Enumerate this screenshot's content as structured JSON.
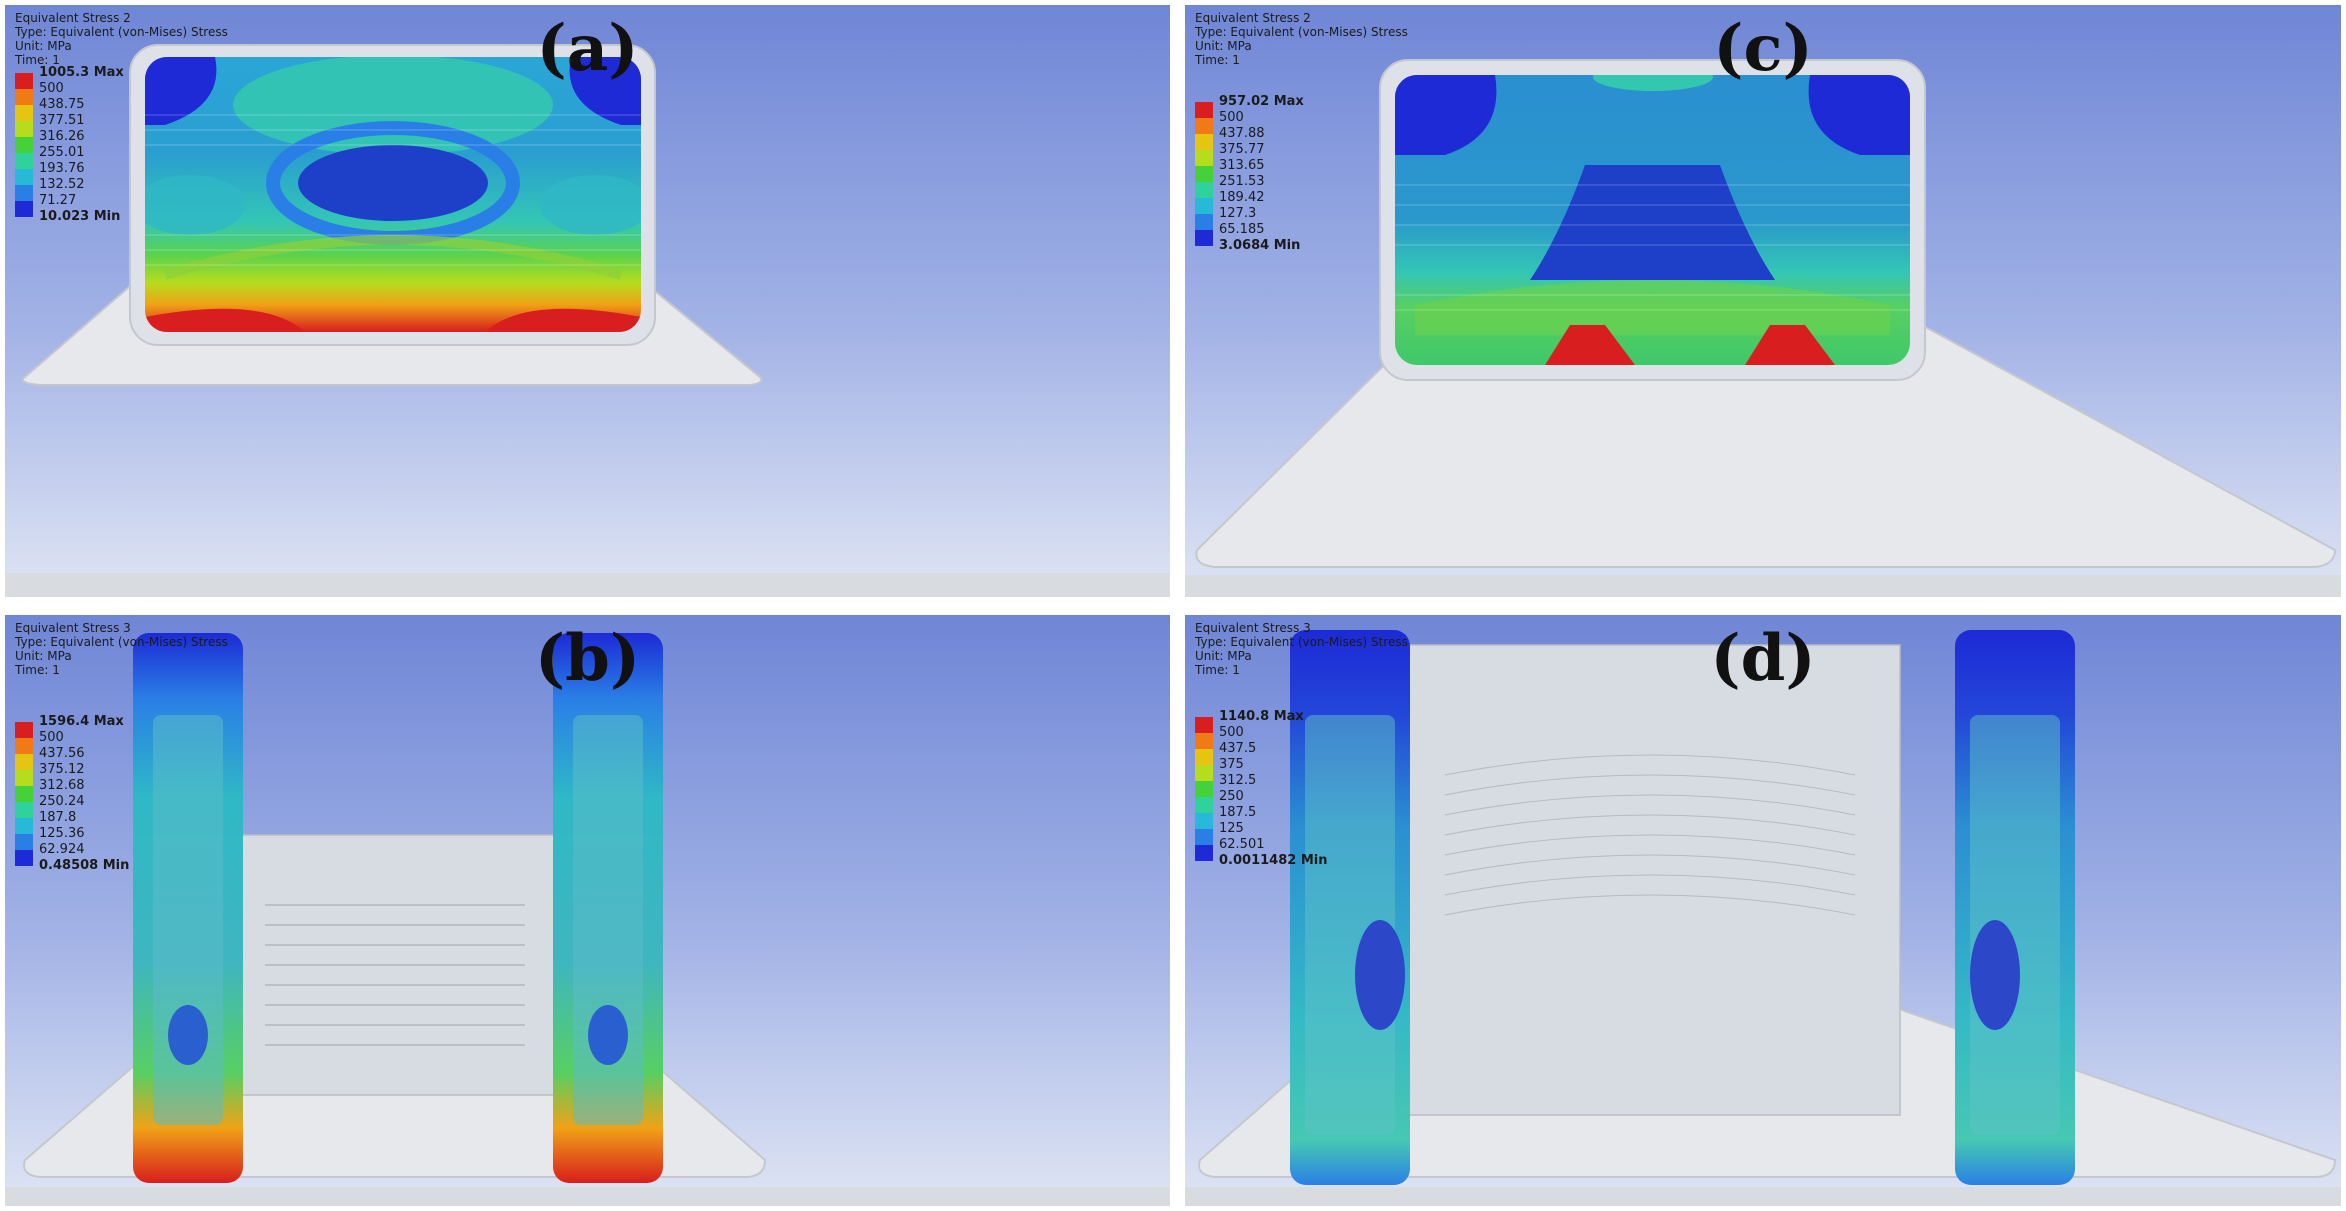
{
  "legend_colors": [
    "#d81e1e",
    "#f07a16",
    "#e6c412",
    "#b6dc1e",
    "#44d13a",
    "#2fd29b",
    "#29b9d8",
    "#2a7fe6",
    "#1d2ad6"
  ],
  "panels": {
    "a": {
      "letter": "(a)",
      "title": "Equivalent Stress 2",
      "type": "Type: Equivalent (von-Mises) Stress",
      "unit": "Unit: MPa",
      "time": "Time: 1",
      "legend": [
        "1005.3 Max",
        "500",
        "438.75",
        "377.51",
        "316.26",
        "255.01",
        "193.76",
        "132.52",
        "71.27",
        "10.023 Min"
      ]
    },
    "c": {
      "letter": "(c)",
      "title": "Equivalent Stress 2",
      "type": "Type: Equivalent (von-Mises) Stress",
      "unit": "Unit: MPa",
      "time": "Time: 1",
      "legend": [
        "957.02 Max",
        "500",
        "437.88",
        "375.77",
        "313.65",
        "251.53",
        "189.42",
        "127.3",
        "65.185",
        "3.0684 Min"
      ]
    },
    "b": {
      "letter": "(b)",
      "title": "Equivalent Stress 3",
      "type": "Type: Equivalent (von-Mises) Stress",
      "unit": "Unit: MPa",
      "time": "Time: 1",
      "legend": [
        "1596.4 Max",
        "500",
        "437.56",
        "375.12",
        "312.68",
        "250.24",
        "187.8",
        "125.36",
        "62.924",
        "0.48508 Min"
      ]
    },
    "d": {
      "letter": "(d)",
      "title": "Equivalent Stress 3",
      "type": "Type: Equivalent (von-Mises) Stress",
      "unit": "Unit: MPa",
      "time": "Time: 1",
      "legend": [
        "1140.8 Max",
        "500",
        "437.5",
        "375",
        "312.5",
        "250",
        "187.5",
        "125",
        "62.501",
        "0.0011482 Min"
      ]
    }
  }
}
